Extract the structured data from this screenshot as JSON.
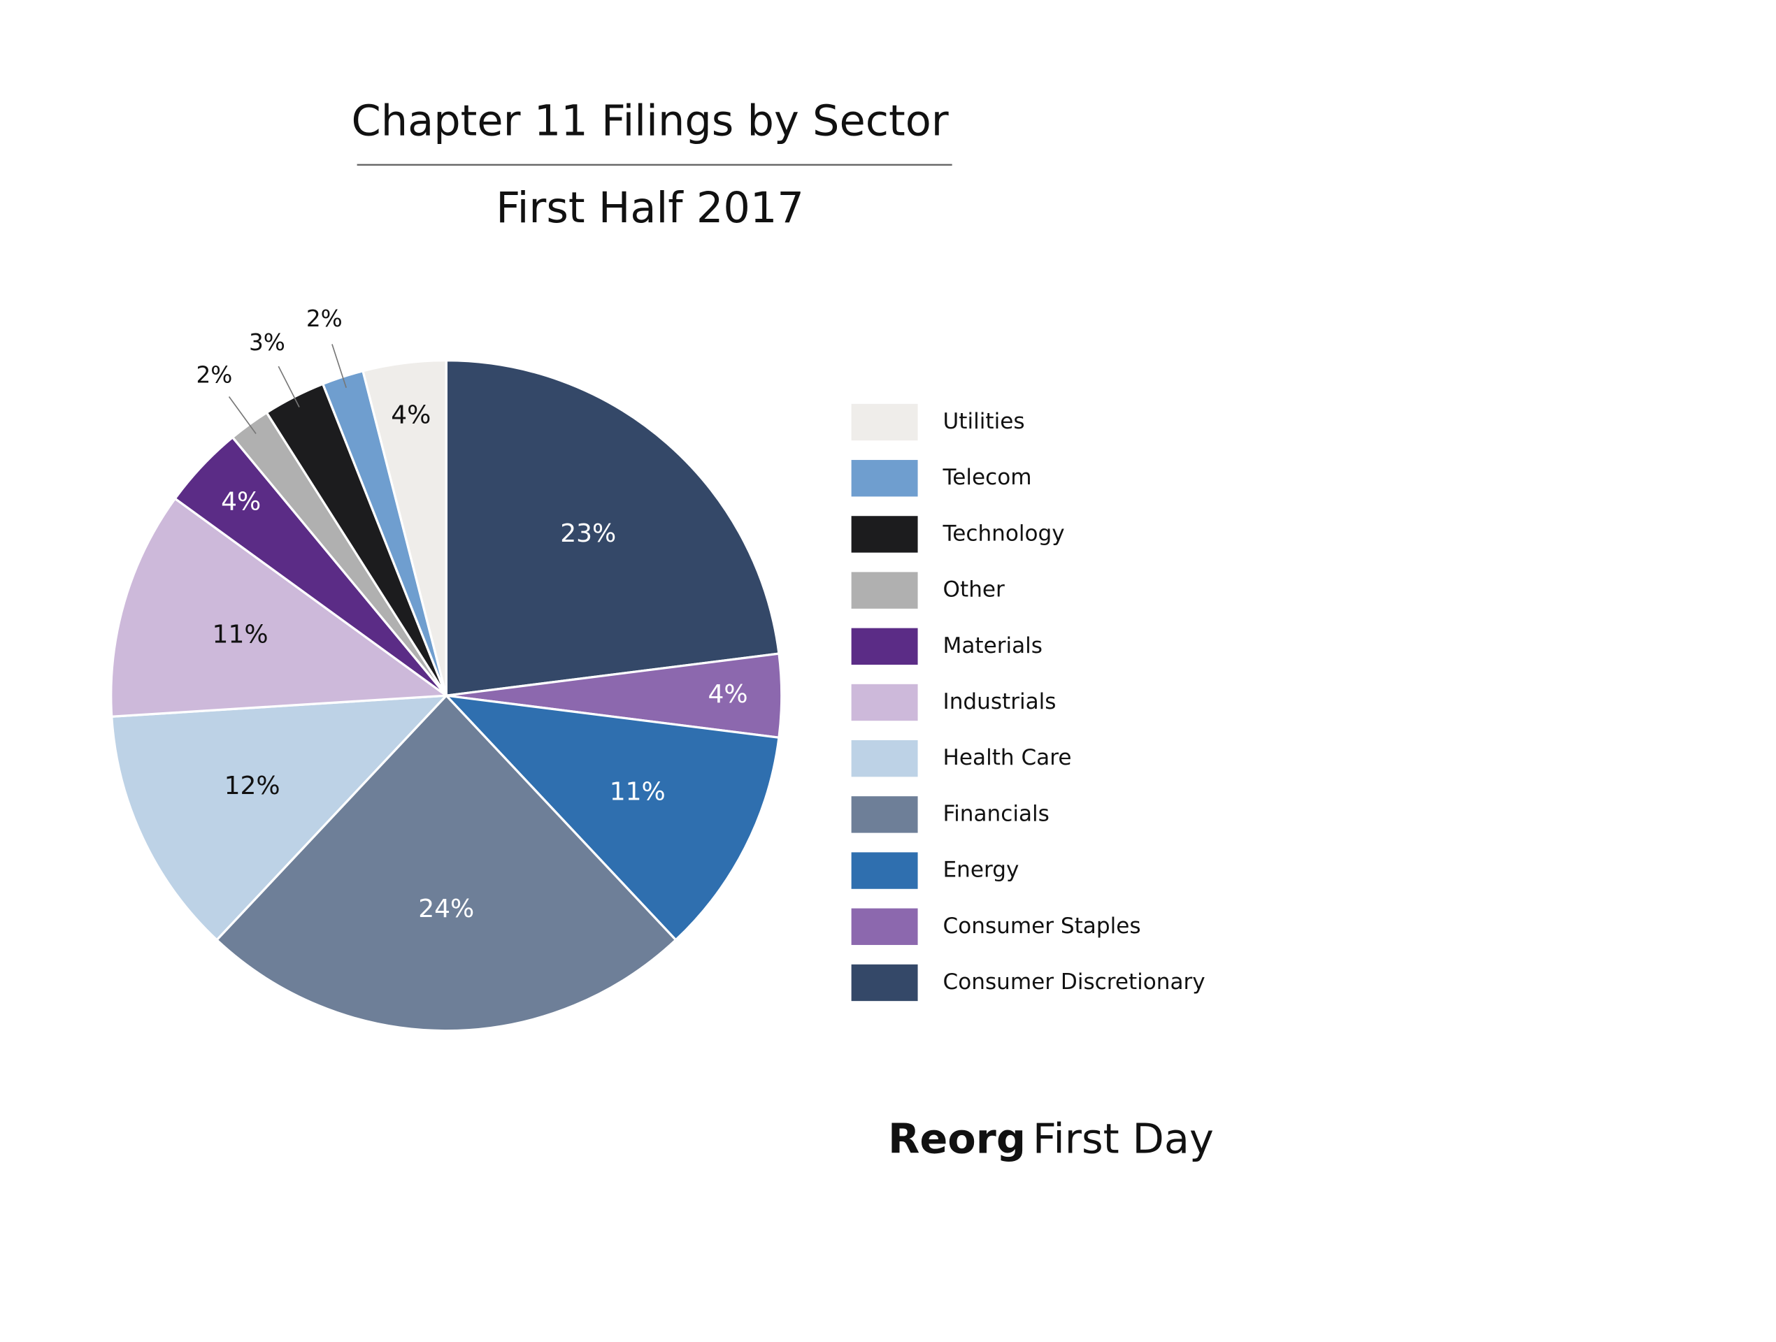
{
  "chart_data": {
    "type": "pie",
    "title": "Chapter 11 Filings by Sector",
    "subtitle": "First Half 2017",
    "categories": [
      "Consumer Discretionary",
      "Consumer Staples",
      "Energy",
      "Financials",
      "Health Care",
      "Industrials",
      "Materials",
      "Other",
      "Technology",
      "Telecom",
      "Utilities"
    ],
    "values": [
      23,
      4,
      11,
      24,
      12,
      11,
      4,
      2,
      3,
      2,
      4
    ],
    "value_labels": [
      "23%",
      "4%",
      "11%",
      "24%",
      "12%",
      "11%",
      "4%",
      "2%",
      "3%",
      "2%",
      "4%"
    ],
    "colors": [
      "#344868",
      "#8c68ae",
      "#2f6faf",
      "#6e7f98",
      "#bdd2e6",
      "#cdb9da",
      "#5b2c86",
      "#b0b0b0",
      "#1c1c1e",
      "#6f9ecf",
      "#efedea"
    ],
    "legend": "right"
  },
  "footer": {
    "brand": "Reorg",
    "product": "First Day"
  }
}
